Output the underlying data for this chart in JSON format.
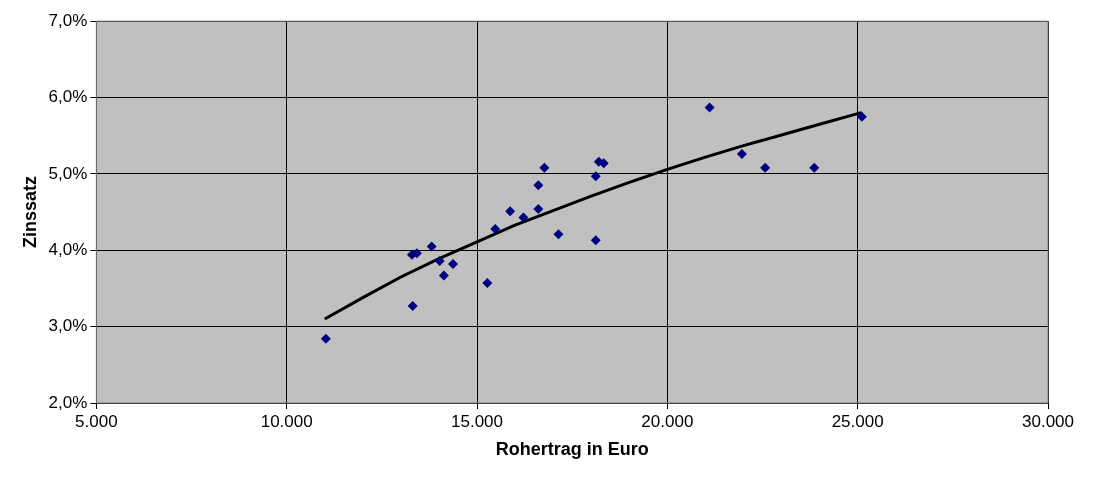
{
  "chart_data": {
    "type": "scatter",
    "xlabel": "Rohertrag in Euro",
    "ylabel": "Zinssatz",
    "xlim": [
      5000,
      30000
    ],
    "ylim": [
      2,
      7
    ],
    "xticks": [
      {
        "value": 5000,
        "label": "5.000"
      },
      {
        "value": 10000,
        "label": "10.000"
      },
      {
        "value": 15000,
        "label": "15.000"
      },
      {
        "value": 20000,
        "label": "20.000"
      },
      {
        "value": 25000,
        "label": "25.000"
      },
      {
        "value": 30000,
        "label": "30.000"
      }
    ],
    "yticks": [
      {
        "value": 2,
        "label": "2,0%"
      },
      {
        "value": 3,
        "label": "3,0%"
      },
      {
        "value": 4,
        "label": "4,0%"
      },
      {
        "value": 5,
        "label": "5,0%"
      },
      {
        "value": 6,
        "label": "6,0%"
      },
      {
        "value": 7,
        "label": "7,0%"
      }
    ],
    "grid": true,
    "legend": false,
    "series": [
      {
        "type": "scatter",
        "color": "#000080",
        "marker": "diamond",
        "x": [
          11030,
          13310,
          13290,
          13420,
          13810,
          14020,
          14130,
          14370,
          15270,
          15480,
          15870,
          16220,
          16610,
          16610,
          16770,
          17140,
          18120,
          18120,
          18200,
          18330,
          21110,
          21960,
          22570,
          23860,
          25110
        ],
        "values": [
          2.84,
          3.27,
          3.94,
          3.96,
          4.05,
          3.86,
          3.67,
          3.82,
          3.57,
          4.28,
          4.51,
          4.43,
          4.54,
          4.85,
          5.08,
          4.21,
          4.13,
          4.97,
          5.16,
          5.14,
          5.87,
          5.26,
          5.08,
          5.08,
          5.75
        ]
      },
      {
        "type": "line",
        "color": "#000000",
        "marker": "none",
        "line_style": "solid",
        "x": [
          11000,
          12000,
          13000,
          14000,
          15000,
          16000,
          17000,
          18000,
          19000,
          20000,
          21000,
          22000,
          23000,
          24000,
          25000,
          25110
        ],
        "values": [
          3.1,
          3.38,
          3.65,
          3.89,
          4.11,
          4.33,
          4.52,
          4.71,
          4.89,
          5.06,
          5.22,
          5.37,
          5.51,
          5.65,
          5.79,
          5.8
        ]
      }
    ]
  }
}
